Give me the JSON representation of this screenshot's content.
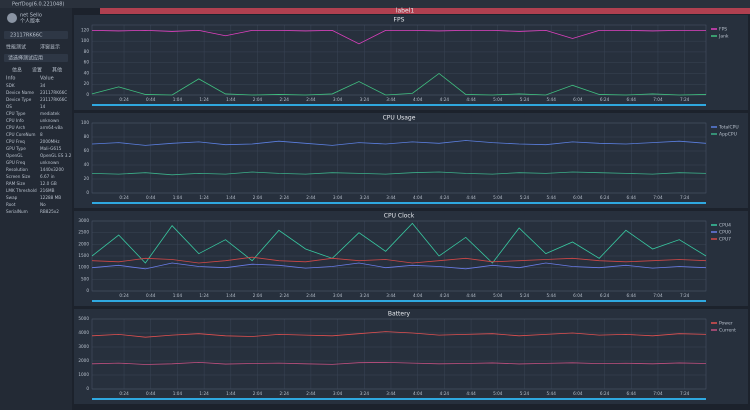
{
  "window": {
    "title": "PerfDog(6.0.221048)"
  },
  "tab": "label1",
  "sidebar": {
    "user": "net Sello",
    "edition": "个人版本",
    "device": "23117RK66C",
    "test_mode": "性能测试",
    "float": "浮窗显示",
    "app": "请选择测试应用",
    "tabs": [
      "信息",
      "设置",
      "其他"
    ],
    "table": {
      "header": [
        "Info",
        "Value"
      ],
      "rows": [
        [
          "SDK",
          "34"
        ],
        [
          "Device Name",
          "23117RK66C"
        ],
        [
          "Device Type",
          "23117RK66C"
        ],
        [
          "OS",
          "14"
        ],
        [
          "CPU Type",
          "mediatek"
        ],
        [
          "CPU Info",
          "unknown"
        ],
        [
          "CPU Arch",
          "arm64-v8a"
        ],
        [
          "CPU CoreNum",
          "8"
        ],
        [
          "CPU Freq",
          "2000MHz"
        ],
        [
          "GPU Type",
          "Mali-G615"
        ],
        [
          "OpenGL",
          "OpenGL ES 3.2"
        ],
        [
          "GPU Freq",
          "unknown"
        ],
        [
          "Resolution",
          "1440x3200"
        ],
        [
          "Screen Size",
          "6.67 in"
        ],
        [
          "RAM Size",
          "12.0 GB"
        ],
        [
          "LMK Threshold",
          "216MB"
        ],
        [
          "Swap",
          "12288 MB"
        ],
        [
          "Root",
          "No"
        ],
        [
          "SerialNum",
          "RB825x2"
        ]
      ]
    }
  },
  "chart_data": [
    {
      "type": "line",
      "title": "FPS",
      "ylim": [
        0,
        130
      ],
      "yticks": [
        0,
        20,
        40,
        60,
        80,
        100,
        120
      ],
      "xlim": [
        0,
        460
      ],
      "xticks": [
        {
          "value": 24,
          "label": "0:24"
        },
        {
          "value": 44,
          "label": "0:44"
        },
        {
          "value": 64,
          "label": "1:04"
        },
        {
          "value": 84,
          "label": "1:24"
        },
        {
          "value": 104,
          "label": "1:44"
        },
        {
          "value": 124,
          "label": "2:04"
        },
        {
          "value": 144,
          "label": "2:24"
        },
        {
          "value": 164,
          "label": "2:44"
        },
        {
          "value": 184,
          "label": "3:04"
        },
        {
          "value": 204,
          "label": "3:24"
        },
        {
          "value": 224,
          "label": "3:44"
        },
        {
          "value": 244,
          "label": "4:04"
        },
        {
          "value": 264,
          "label": "4:24"
        },
        {
          "value": 284,
          "label": "4:44"
        },
        {
          "value": 304,
          "label": "5:04"
        },
        {
          "value": 324,
          "label": "5:24"
        },
        {
          "value": 344,
          "label": "5:44"
        },
        {
          "value": 364,
          "label": "6:04"
        },
        {
          "value": 384,
          "label": "6:24"
        },
        {
          "value": 404,
          "label": "6:44"
        },
        {
          "value": 424,
          "label": "7:04"
        },
        {
          "value": 444,
          "label": "7:24"
        }
      ],
      "x": [
        0,
        20,
        40,
        60,
        80,
        100,
        120,
        140,
        160,
        180,
        200,
        220,
        240,
        260,
        280,
        300,
        320,
        340,
        360,
        380,
        400,
        420,
        440,
        460
      ],
      "series": [
        {
          "name": "FPS",
          "color": "#e040c0",
          "values": [
            120,
            119,
            120,
            118,
            120,
            110,
            120,
            120,
            119,
            120,
            95,
            120,
            120,
            119,
            120,
            120,
            118,
            120,
            105,
            120,
            120,
            119,
            120,
            120
          ]
        },
        {
          "name": "Jank",
          "color": "#40c080",
          "values": [
            2,
            15,
            1,
            0,
            30,
            2,
            0,
            1,
            0,
            2,
            25,
            0,
            3,
            40,
            1,
            0,
            2,
            0,
            18,
            1,
            0,
            2,
            0,
            1
          ]
        }
      ]
    },
    {
      "type": "line",
      "title": "CPU Usage",
      "ylim": [
        0,
        100
      ],
      "yticks": [
        0,
        20,
        40,
        60,
        80,
        100
      ],
      "xlim": [
        0,
        460
      ],
      "xticks": [
        {
          "value": 24,
          "label": "0:24"
        },
        {
          "value": 44,
          "label": "0:44"
        },
        {
          "value": 64,
          "label": "1:04"
        },
        {
          "value": 84,
          "label": "1:24"
        },
        {
          "value": 104,
          "label": "1:44"
        },
        {
          "value": 124,
          "label": "2:04"
        },
        {
          "value": 144,
          "label": "2:24"
        },
        {
          "value": 164,
          "label": "2:44"
        },
        {
          "value": 184,
          "label": "3:04"
        },
        {
          "value": 204,
          "label": "3:24"
        },
        {
          "value": 224,
          "label": "3:44"
        },
        {
          "value": 244,
          "label": "4:04"
        },
        {
          "value": 264,
          "label": "4:24"
        },
        {
          "value": 284,
          "label": "4:44"
        },
        {
          "value": 304,
          "label": "5:04"
        },
        {
          "value": 324,
          "label": "5:24"
        },
        {
          "value": 344,
          "label": "5:44"
        },
        {
          "value": 364,
          "label": "6:04"
        },
        {
          "value": 384,
          "label": "6:24"
        },
        {
          "value": 404,
          "label": "6:44"
        },
        {
          "value": 424,
          "label": "7:04"
        },
        {
          "value": 444,
          "label": "7:24"
        }
      ],
      "x": [
        0,
        20,
        40,
        60,
        80,
        100,
        120,
        140,
        160,
        180,
        200,
        220,
        240,
        260,
        280,
        300,
        320,
        340,
        360,
        380,
        400,
        420,
        440,
        460
      ],
      "series": [
        {
          "name": "TotalCPU",
          "color": "#5b7fe0",
          "values": [
            70,
            72,
            68,
            71,
            73,
            69,
            70,
            74,
            71,
            68,
            72,
            70,
            73,
            71,
            75,
            72,
            70,
            69,
            73,
            71,
            70,
            72,
            74,
            71
          ]
        },
        {
          "name": "AppCPU",
          "color": "#3cb08a",
          "values": [
            28,
            27,
            29,
            26,
            28,
            27,
            30,
            28,
            27,
            29,
            28,
            27,
            29,
            30,
            28,
            27,
            29,
            28,
            30,
            29,
            28,
            27,
            29,
            28
          ]
        }
      ]
    },
    {
      "type": "line",
      "title": "CPU Clock",
      "ylim": [
        0,
        3000
      ],
      "yticks": [
        0,
        500,
        1000,
        1500,
        2000,
        2500,
        3000
      ],
      "xlim": [
        0,
        460
      ],
      "xticks": [
        {
          "value": 24,
          "label": "0:24"
        },
        {
          "value": 44,
          "label": "0:44"
        },
        {
          "value": 64,
          "label": "1:04"
        },
        {
          "value": 84,
          "label": "1:24"
        },
        {
          "value": 104,
          "label": "1:44"
        },
        {
          "value": 124,
          "label": "2:04"
        },
        {
          "value": 144,
          "label": "2:24"
        },
        {
          "value": 164,
          "label": "2:44"
        },
        {
          "value": 184,
          "label": "3:04"
        },
        {
          "value": 204,
          "label": "3:24"
        },
        {
          "value": 224,
          "label": "3:44"
        },
        {
          "value": 244,
          "label": "4:04"
        },
        {
          "value": 264,
          "label": "4:24"
        },
        {
          "value": 284,
          "label": "4:44"
        },
        {
          "value": 304,
          "label": "5:04"
        },
        {
          "value": 324,
          "label": "5:24"
        },
        {
          "value": 344,
          "label": "5:44"
        },
        {
          "value": 364,
          "label": "6:04"
        },
        {
          "value": 384,
          "label": "6:24"
        },
        {
          "value": 404,
          "label": "6:44"
        },
        {
          "value": 424,
          "label": "7:04"
        },
        {
          "value": 444,
          "label": "7:24"
        }
      ],
      "x": [
        0,
        20,
        40,
        60,
        80,
        100,
        120,
        140,
        160,
        180,
        200,
        220,
        240,
        260,
        280,
        300,
        320,
        340,
        360,
        380,
        400,
        420,
        440,
        460
      ],
      "series": [
        {
          "name": "CPU4",
          "color": "#38c8a0",
          "values": [
            1500,
            2400,
            1200,
            2800,
            1600,
            2200,
            1300,
            2600,
            1800,
            1400,
            2500,
            1700,
            2900,
            1500,
            2300,
            1200,
            2700,
            1600,
            2100,
            1400,
            2600,
            1800,
            2200,
            1500
          ]
        },
        {
          "name": "CPU0",
          "color": "#6a7ce8",
          "values": [
            1000,
            1100,
            950,
            1200,
            1050,
            1000,
            1150,
            1100,
            980,
            1050,
            1200,
            1000,
            1100,
            1050,
            950,
            1100,
            1000,
            1200,
            1050,
            1000,
            1100,
            980,
            1050,
            1000
          ]
        },
        {
          "name": "CPU7",
          "color": "#d04848",
          "values": [
            1300,
            1250,
            1400,
            1350,
            1200,
            1300,
            1450,
            1300,
            1250,
            1400,
            1300,
            1350,
            1200,
            1300,
            1400,
            1250,
            1300,
            1350,
            1400,
            1300,
            1250,
            1300,
            1350,
            1300
          ]
        }
      ]
    },
    {
      "type": "line",
      "title": "Battery",
      "ylim": [
        0,
        5000
      ],
      "yticks": [
        0,
        1000,
        2000,
        3000,
        4000,
        5000
      ],
      "xlim": [
        0,
        460
      ],
      "xticks": [
        {
          "value": 24,
          "label": "0:24"
        },
        {
          "value": 44,
          "label": "0:44"
        },
        {
          "value": 64,
          "label": "1:04"
        },
        {
          "value": 84,
          "label": "1:24"
        },
        {
          "value": 104,
          "label": "1:44"
        },
        {
          "value": 124,
          "label": "2:04"
        },
        {
          "value": 144,
          "label": "2:24"
        },
        {
          "value": 164,
          "label": "2:44"
        },
        {
          "value": 184,
          "label": "3:04"
        },
        {
          "value": 204,
          "label": "3:24"
        },
        {
          "value": 224,
          "label": "3:44"
        },
        {
          "value": 244,
          "label": "4:04"
        },
        {
          "value": 264,
          "label": "4:24"
        },
        {
          "value": 284,
          "label": "4:44"
        },
        {
          "value": 304,
          "label": "5:04"
        },
        {
          "value": 324,
          "label": "5:24"
        },
        {
          "value": 344,
          "label": "5:44"
        },
        {
          "value": 364,
          "label": "6:04"
        },
        {
          "value": 384,
          "label": "6:24"
        },
        {
          "value": 404,
          "label": "6:44"
        },
        {
          "value": 424,
          "label": "7:04"
        },
        {
          "value": 444,
          "label": "7:24"
        }
      ],
      "x": [
        0,
        20,
        40,
        60,
        80,
        100,
        120,
        140,
        160,
        180,
        200,
        220,
        240,
        260,
        280,
        300,
        320,
        340,
        360,
        380,
        400,
        420,
        440,
        460
      ],
      "series": [
        {
          "name": "Power",
          "color": "#e05050",
          "values": [
            3800,
            3900,
            3700,
            3850,
            3950,
            3800,
            3750,
            3900,
            3850,
            3800,
            3950,
            4100,
            4000,
            3850,
            3900,
            3950,
            3800,
            3900,
            4000,
            3850,
            3900,
            3800,
            3950,
            3900
          ]
        },
        {
          "name": "Current",
          "color": "#c05080",
          "values": [
            1800,
            1850,
            1750,
            1800,
            1900,
            1780,
            1820,
            1850,
            1800,
            1760,
            1880,
            1900,
            1850,
            1800,
            1820,
            1860,
            1790,
            1830,
            1870,
            1810,
            1840,
            1800,
            1860,
            1820
          ]
        }
      ]
    }
  ]
}
